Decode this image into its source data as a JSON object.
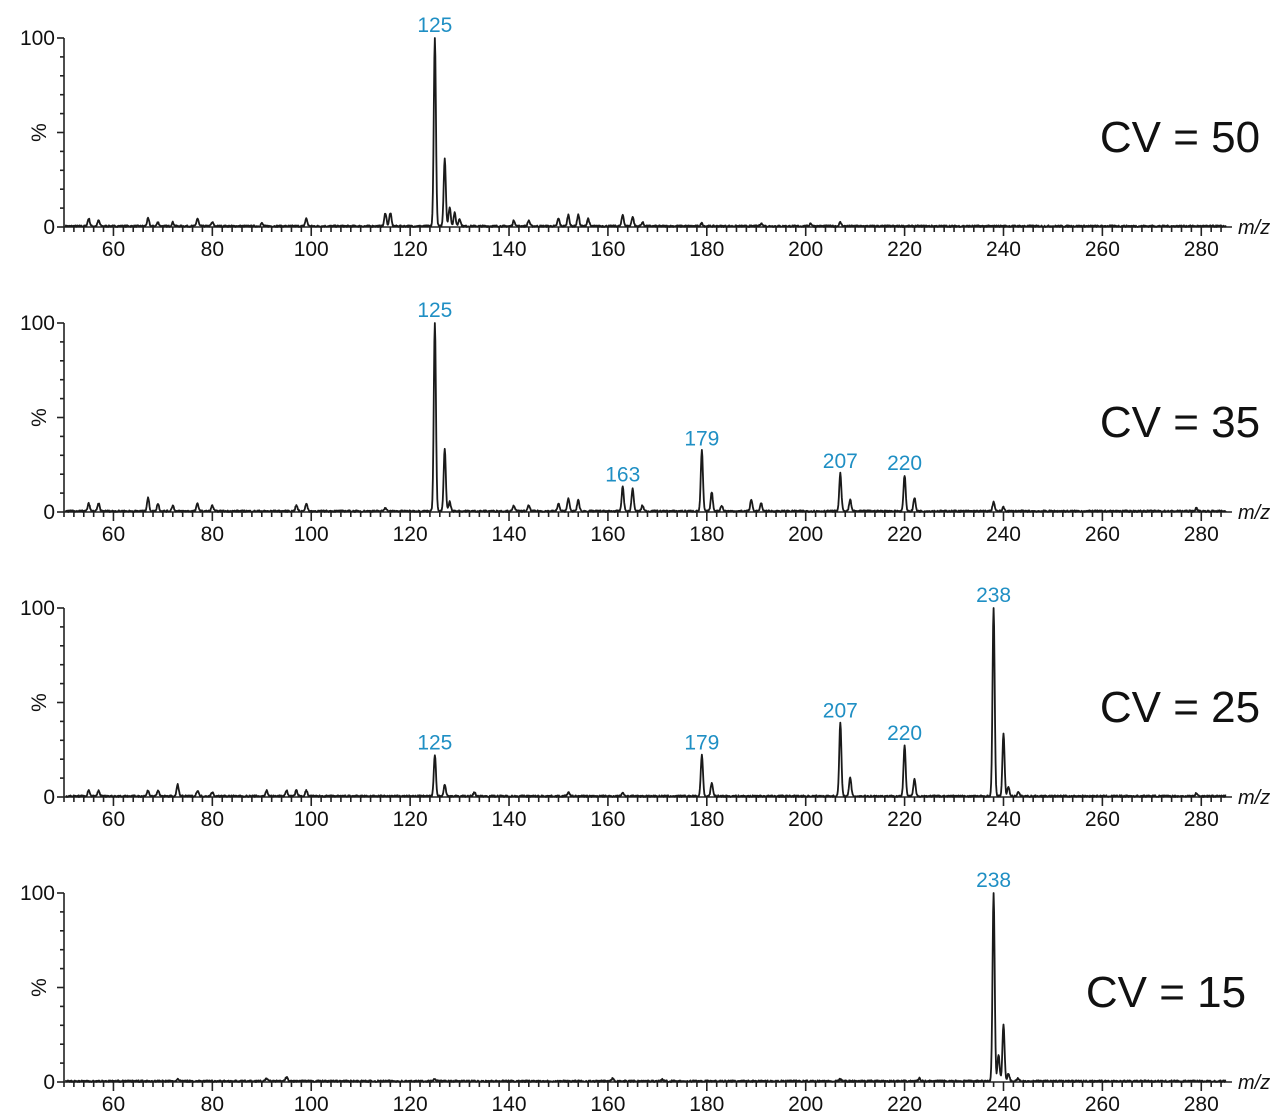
{
  "chart_data": [
    {
      "type": "line",
      "panel_label": "CV = 50",
      "xlabel": "m/z",
      "ylabel": "%",
      "xlim": [
        50,
        285
      ],
      "ylim": [
        0,
        100
      ],
      "x_ticks": [
        60,
        80,
        100,
        120,
        140,
        160,
        180,
        200,
        220,
        240,
        260,
        280
      ],
      "y_ticks": [
        0,
        50,
        100
      ],
      "peaks": [
        {
          "x": 55,
          "y": 4
        },
        {
          "x": 57,
          "y": 3
        },
        {
          "x": 67,
          "y": 4
        },
        {
          "x": 69,
          "y": 2
        },
        {
          "x": 72,
          "y": 2
        },
        {
          "x": 77,
          "y": 4
        },
        {
          "x": 80,
          "y": 2
        },
        {
          "x": 90,
          "y": 1.5
        },
        {
          "x": 99,
          "y": 4
        },
        {
          "x": 115,
          "y": 7
        },
        {
          "x": 116,
          "y": 7
        },
        {
          "x": 125,
          "y": 100
        },
        {
          "x": 127,
          "y": 36
        },
        {
          "x": 128,
          "y": 10
        },
        {
          "x": 129,
          "y": 7
        },
        {
          "x": 130,
          "y": 4
        },
        {
          "x": 141,
          "y": 3
        },
        {
          "x": 144,
          "y": 3
        },
        {
          "x": 150,
          "y": 4
        },
        {
          "x": 152,
          "y": 6
        },
        {
          "x": 154,
          "y": 6
        },
        {
          "x": 156,
          "y": 4
        },
        {
          "x": 163,
          "y": 6
        },
        {
          "x": 165,
          "y": 5
        },
        {
          "x": 167,
          "y": 2
        },
        {
          "x": 179,
          "y": 1.5
        },
        {
          "x": 191,
          "y": 1.5
        },
        {
          "x": 201,
          "y": 1.5
        },
        {
          "x": 207,
          "y": 2
        }
      ],
      "labels": [
        {
          "x": 125,
          "y": 100,
          "text": "125"
        }
      ]
    },
    {
      "type": "line",
      "panel_label": "CV = 35",
      "xlabel": "m/z",
      "ylabel": "%",
      "xlim": [
        50,
        285
      ],
      "ylim": [
        0,
        100
      ],
      "x_ticks": [
        60,
        80,
        100,
        120,
        140,
        160,
        180,
        200,
        220,
        240,
        260,
        280
      ],
      "y_ticks": [
        0,
        50,
        100
      ],
      "peaks": [
        {
          "x": 55,
          "y": 4
        },
        {
          "x": 57,
          "y": 4
        },
        {
          "x": 67,
          "y": 7
        },
        {
          "x": 69,
          "y": 4
        },
        {
          "x": 72,
          "y": 3
        },
        {
          "x": 77,
          "y": 4
        },
        {
          "x": 80,
          "y": 3
        },
        {
          "x": 97,
          "y": 3
        },
        {
          "x": 99,
          "y": 4
        },
        {
          "x": 115,
          "y": 2
        },
        {
          "x": 125,
          "y": 100
        },
        {
          "x": 127,
          "y": 33
        },
        {
          "x": 128,
          "y": 5
        },
        {
          "x": 141,
          "y": 3
        },
        {
          "x": 144,
          "y": 3
        },
        {
          "x": 150,
          "y": 4
        },
        {
          "x": 152,
          "y": 7
        },
        {
          "x": 154,
          "y": 6
        },
        {
          "x": 163,
          "y": 13
        },
        {
          "x": 165,
          "y": 12
        },
        {
          "x": 167,
          "y": 3
        },
        {
          "x": 179,
          "y": 32
        },
        {
          "x": 181,
          "y": 10
        },
        {
          "x": 183,
          "y": 3
        },
        {
          "x": 189,
          "y": 6
        },
        {
          "x": 191,
          "y": 4
        },
        {
          "x": 207,
          "y": 20
        },
        {
          "x": 209,
          "y": 6
        },
        {
          "x": 220,
          "y": 19
        },
        {
          "x": 222,
          "y": 7
        },
        {
          "x": 238,
          "y": 5
        },
        {
          "x": 240,
          "y": 2
        },
        {
          "x": 279,
          "y": 1.5
        }
      ],
      "labels": [
        {
          "x": 125,
          "y": 100,
          "text": "125"
        },
        {
          "x": 163,
          "y": 13,
          "text": "163"
        },
        {
          "x": 179,
          "y": 32,
          "text": "179"
        },
        {
          "x": 207,
          "y": 20,
          "text": "207"
        },
        {
          "x": 220,
          "y": 19,
          "text": "220"
        }
      ]
    },
    {
      "type": "line",
      "panel_label": "CV = 25",
      "xlabel": "m/z",
      "ylabel": "%",
      "xlim": [
        50,
        285
      ],
      "ylim": [
        0,
        100
      ],
      "x_ticks": [
        60,
        80,
        100,
        120,
        140,
        160,
        180,
        200,
        220,
        240,
        260,
        280
      ],
      "y_ticks": [
        0,
        50,
        100
      ],
      "peaks": [
        {
          "x": 55,
          "y": 3
        },
        {
          "x": 57,
          "y": 3
        },
        {
          "x": 67,
          "y": 3
        },
        {
          "x": 69,
          "y": 3
        },
        {
          "x": 73,
          "y": 6
        },
        {
          "x": 77,
          "y": 3
        },
        {
          "x": 80,
          "y": 2
        },
        {
          "x": 91,
          "y": 3
        },
        {
          "x": 95,
          "y": 3
        },
        {
          "x": 97,
          "y": 3
        },
        {
          "x": 99,
          "y": 3
        },
        {
          "x": 125,
          "y": 22
        },
        {
          "x": 127,
          "y": 6
        },
        {
          "x": 133,
          "y": 2
        },
        {
          "x": 152,
          "y": 2
        },
        {
          "x": 163,
          "y": 2
        },
        {
          "x": 179,
          "y": 22
        },
        {
          "x": 181,
          "y": 7
        },
        {
          "x": 207,
          "y": 39
        },
        {
          "x": 209,
          "y": 10
        },
        {
          "x": 220,
          "y": 27
        },
        {
          "x": 222,
          "y": 9
        },
        {
          "x": 238,
          "y": 100
        },
        {
          "x": 240,
          "y": 33
        },
        {
          "x": 241,
          "y": 5
        },
        {
          "x": 243,
          "y": 2
        },
        {
          "x": 279,
          "y": 1.5
        }
      ],
      "labels": [
        {
          "x": 125,
          "y": 22,
          "text": "125"
        },
        {
          "x": 179,
          "y": 22,
          "text": "179"
        },
        {
          "x": 207,
          "y": 39,
          "text": "207"
        },
        {
          "x": 220,
          "y": 27,
          "text": "220"
        },
        {
          "x": 238,
          "y": 100,
          "text": "238"
        }
      ]
    },
    {
      "type": "line",
      "panel_label": "CV = 15",
      "xlabel": "m/z",
      "ylabel": "%",
      "xlim": [
        50,
        285
      ],
      "ylim": [
        0,
        100
      ],
      "x_ticks": [
        60,
        80,
        100,
        120,
        140,
        160,
        180,
        200,
        220,
        240,
        260,
        280
      ],
      "y_ticks": [
        0,
        50,
        100
      ],
      "peaks": [
        {
          "x": 73,
          "y": 1
        },
        {
          "x": 91,
          "y": 1.5
        },
        {
          "x": 95,
          "y": 2
        },
        {
          "x": 125,
          "y": 1
        },
        {
          "x": 161,
          "y": 1.5
        },
        {
          "x": 171,
          "y": 1
        },
        {
          "x": 207,
          "y": 1
        },
        {
          "x": 223,
          "y": 1.5
        },
        {
          "x": 238,
          "y": 100
        },
        {
          "x": 239,
          "y": 14
        },
        {
          "x": 240,
          "y": 30
        },
        {
          "x": 241,
          "y": 4
        },
        {
          "x": 243,
          "y": 1.5
        }
      ],
      "labels": [
        {
          "x": 238,
          "y": 100,
          "text": "238"
        }
      ]
    }
  ],
  "colors": {
    "peak_label": "#1f8fc4",
    "trace": "#1a1a1a",
    "axis": "#222222"
  }
}
